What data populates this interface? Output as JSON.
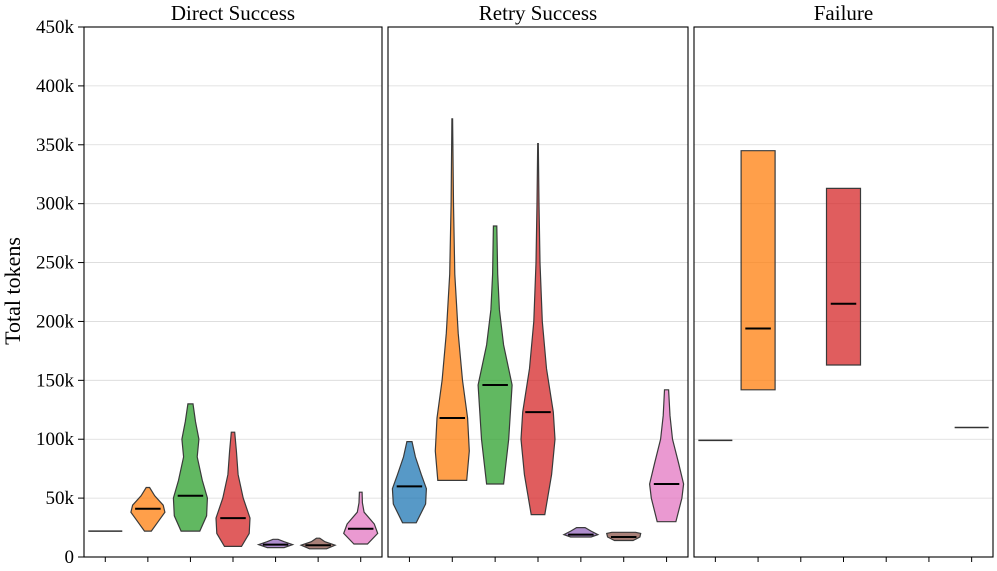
{
  "chart_data": {
    "type": "violin",
    "ylabel": "Total tokens",
    "ylim": [
      0,
      450000
    ],
    "yticks": [
      0,
      50000,
      100000,
      150000,
      200000,
      250000,
      300000,
      350000,
      400000,
      450000
    ],
    "ytick_labels": [
      "0",
      "50k",
      "100k",
      "150k",
      "200k",
      "250k",
      "300k",
      "350k",
      "400k",
      "450k"
    ],
    "grid": true,
    "categories_per_panel": 7,
    "colors": [
      "#1f77b4",
      "#ff7f0e",
      "#2ca02c",
      "#d62728",
      "#9467bd",
      "#8c564b",
      "#e377c2"
    ],
    "panels": [
      {
        "title": "Direct Success",
        "violins": [
          {
            "index": 0,
            "min": 21000,
            "max": 23000,
            "median": 22000,
            "shape": "flat"
          },
          {
            "index": 1,
            "min": 22000,
            "max": 59000,
            "median": 41000,
            "profile": [
              [
                22000,
                0.2
              ],
              [
                30000,
                0.6
              ],
              [
                38000,
                1.0
              ],
              [
                44000,
                0.9
              ],
              [
                52000,
                0.4
              ],
              [
                59000,
                0.1
              ]
            ]
          },
          {
            "index": 2,
            "min": 22000,
            "max": 130000,
            "median": 52000,
            "profile": [
              [
                22000,
                0.55
              ],
              [
                35000,
                0.95
              ],
              [
                50000,
                1.0
              ],
              [
                65000,
                0.7
              ],
              [
                85000,
                0.4
              ],
              [
                100000,
                0.5
              ],
              [
                115000,
                0.3
              ],
              [
                130000,
                0.15
              ]
            ]
          },
          {
            "index": 3,
            "min": 9000,
            "max": 106000,
            "median": 33000,
            "profile": [
              [
                9000,
                0.5
              ],
              [
                20000,
                0.95
              ],
              [
                33000,
                1.0
              ],
              [
                50000,
                0.6
              ],
              [
                70000,
                0.3
              ],
              [
                90000,
                0.2
              ],
              [
                106000,
                0.1
              ]
            ]
          },
          {
            "index": 4,
            "min": 8000,
            "max": 15000,
            "median": 10500,
            "profile": [
              [
                8000,
                0.5
              ],
              [
                10500,
                1.0
              ],
              [
                13000,
                0.5
              ],
              [
                15000,
                0.15
              ]
            ]
          },
          {
            "index": 5,
            "min": 7000,
            "max": 16000,
            "median": 10000,
            "profile": [
              [
                7000,
                0.5
              ],
              [
                10000,
                1.0
              ],
              [
                13000,
                0.4
              ],
              [
                16000,
                0.1
              ]
            ]
          },
          {
            "index": 6,
            "min": 11000,
            "max": 55000,
            "median": 24000,
            "profile": [
              [
                11000,
                0.4
              ],
              [
                20000,
                1.0
              ],
              [
                28000,
                0.8
              ],
              [
                38000,
                0.2
              ],
              [
                46000,
                0.1
              ],
              [
                55000,
                0.08
              ]
            ]
          }
        ]
      },
      {
        "title": "Retry Success",
        "violins": [
          {
            "index": 0,
            "min": 29000,
            "max": 98000,
            "median": 60000,
            "profile": [
              [
                29000,
                0.4
              ],
              [
                45000,
                0.95
              ],
              [
                58000,
                1.0
              ],
              [
                70000,
                0.7
              ],
              [
                85000,
                0.35
              ],
              [
                98000,
                0.15
              ]
            ]
          },
          {
            "index": 1,
            "min": 65000,
            "max": 372000,
            "median": 118000,
            "profile": [
              [
                65000,
                0.85
              ],
              [
                90000,
                1.0
              ],
              [
                118000,
                0.9
              ],
              [
                150000,
                0.6
              ],
              [
                190000,
                0.35
              ],
              [
                240000,
                0.15
              ],
              [
                300000,
                0.07
              ],
              [
                372000,
                0.02
              ]
            ]
          },
          {
            "index": 2,
            "min": 62000,
            "max": 281000,
            "median": 146000,
            "profile": [
              [
                62000,
                0.5
              ],
              [
                100000,
                0.8
              ],
              [
                146000,
                1.0
              ],
              [
                180000,
                0.5
              ],
              [
                210000,
                0.25
              ],
              [
                240000,
                0.15
              ],
              [
                281000,
                0.1
              ]
            ]
          },
          {
            "index": 3,
            "min": 36000,
            "max": 351000,
            "median": 123000,
            "profile": [
              [
                36000,
                0.4
              ],
              [
                70000,
                0.8
              ],
              [
                100000,
                1.0
              ],
              [
                123000,
                0.9
              ],
              [
                160000,
                0.5
              ],
              [
                200000,
                0.25
              ],
              [
                250000,
                0.12
              ],
              [
                300000,
                0.06
              ],
              [
                351000,
                0.02
              ]
            ]
          },
          {
            "index": 4,
            "min": 17000,
            "max": 25000,
            "median": 19000,
            "profile": [
              [
                17000,
                0.6
              ],
              [
                19000,
                1.0
              ],
              [
                22000,
                0.6
              ],
              [
                25000,
                0.25
              ]
            ]
          },
          {
            "index": 5,
            "min": 14000,
            "max": 21000,
            "median": 17000,
            "profile": [
              [
                14000,
                0.55
              ],
              [
                17000,
                0.95
              ],
              [
                20000,
                1.0
              ],
              [
                21000,
                0.7
              ]
            ]
          },
          {
            "index": 6,
            "min": 30000,
            "max": 142000,
            "median": 62000,
            "profile": [
              [
                30000,
                0.55
              ],
              [
                50000,
                0.9
              ],
              [
                62000,
                1.0
              ],
              [
                80000,
                0.7
              ],
              [
                100000,
                0.35
              ],
              [
                120000,
                0.2
              ],
              [
                142000,
                0.12
              ]
            ]
          }
        ]
      },
      {
        "title": "Failure",
        "violins": [
          {
            "index": 0,
            "min": 99000,
            "max": 99000,
            "median": 99000,
            "shape": "flat"
          },
          {
            "index": 1,
            "min": 142000,
            "max": 345000,
            "median": 194000,
            "shape": "box"
          },
          {
            "index": 3,
            "min": 163000,
            "max": 313000,
            "median": 215000,
            "shape": "box"
          },
          {
            "index": 6,
            "min": 110000,
            "max": 110000,
            "median": 110000,
            "shape": "flat"
          }
        ]
      }
    ]
  }
}
